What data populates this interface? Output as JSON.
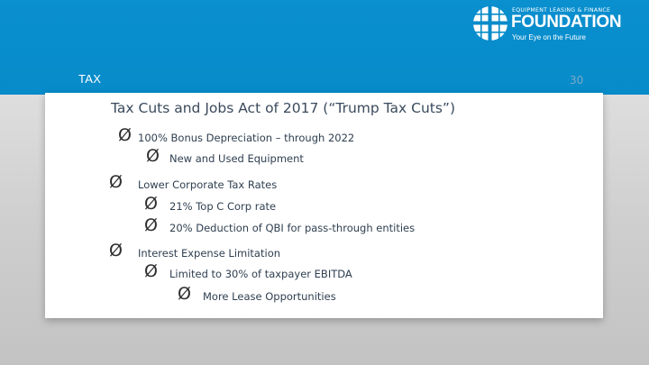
{
  "logo": {
    "top_text": "EQUIPMENT LEASING & FINANCE",
    "name": "FOUNDATION",
    "tagline": "Your Eye on the Future"
  },
  "header": {
    "section": "TAX",
    "page_number": "30"
  },
  "slide": {
    "title": "Tax Cuts and Jobs Act of 2017  (“Trump Tax Cuts”)",
    "bullets": [
      {
        "text": "100% Bonus Depreciation – through 2022",
        "children": [
          {
            "text": "New and Used Equipment"
          }
        ]
      },
      {
        "text": "Lower Corporate Tax Rates",
        "children": [
          {
            "text": "21% Top C Corp rate"
          },
          {
            "text": "20% Deduction of QBI for pass-through entities"
          }
        ]
      },
      {
        "text": "Interest Expense Limitation",
        "children": [
          {
            "text": "Limited to 30% of taxpayer EBITDA",
            "children": [
              {
                "text": "More Lease Opportunities"
              }
            ]
          }
        ]
      }
    ]
  },
  "colors": {
    "band": "#078bc9",
    "title": "#3a4a5c",
    "text": "#2f3f50"
  },
  "bullet_glyph": "Ø"
}
